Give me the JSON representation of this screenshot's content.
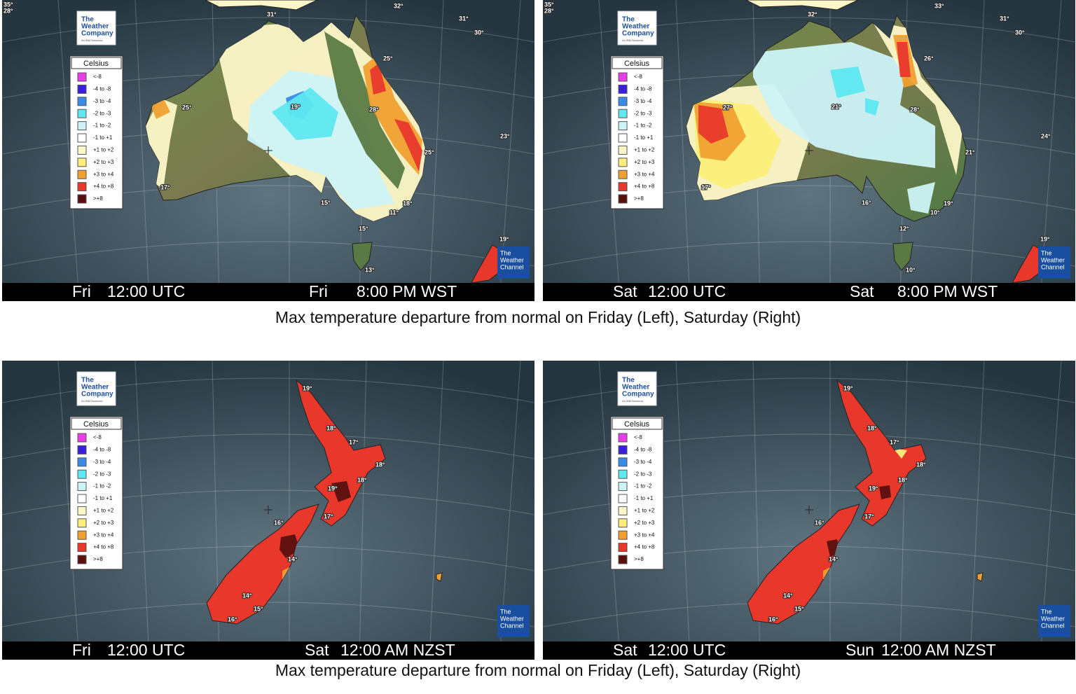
{
  "logo": {
    "line1": "The",
    "line2": "Weather",
    "line3": "Company",
    "sub": "An IBM Business"
  },
  "channel_logo": {
    "line1": "The",
    "line2": "Weather",
    "line3": "Channel"
  },
  "legend": {
    "title": "Celsius",
    "items": [
      {
        "label": "<-8",
        "color": "#e83ee8"
      },
      {
        "label": "-4 to -8",
        "color": "#3a1ee0"
      },
      {
        "label": "-3 to -4",
        "color": "#3a8ae8"
      },
      {
        "label": "-2 to -3",
        "color": "#5ee8f0"
      },
      {
        "label": "-1 to -2",
        "color": "#cdf3f7"
      },
      {
        "label": "-1 to +1",
        "color": "#ffffff"
      },
      {
        "label": "+1 to +2",
        "color": "#fdf7c8"
      },
      {
        "label": "+2 to +3",
        "color": "#fbef7a"
      },
      {
        "label": "+3 to +4",
        "color": "#f0a030"
      },
      {
        "label": "+4 to +8",
        "color": "#e8382c"
      },
      {
        "label": ">+8",
        "color": "#5a0f0f"
      }
    ]
  },
  "panels": [
    {
      "region": "australia",
      "utc_day": "Fri",
      "utc_time": "12:00 UTC",
      "local_day": "Fri",
      "local_time": "8:00 PM WST",
      "temps": [
        "35°",
        "28°",
        "31°",
        "32°",
        "31°",
        "30°",
        "25°",
        "25°",
        "19°",
        "28°",
        "23°",
        "25°",
        "17°",
        "15°",
        "18°",
        "11°",
        "15°",
        "19°",
        "13°"
      ]
    },
    {
      "region": "australia",
      "utc_day": "Sat",
      "utc_time": "12:00 UTC",
      "local_day": "Sat",
      "local_time": "8:00 PM WST",
      "temps": [
        "35°",
        "28°",
        "32°",
        "33°",
        "31°",
        "30°",
        "26°",
        "27°",
        "21°",
        "28°",
        "24°",
        "21°",
        "17°",
        "16°",
        "19°",
        "10°",
        "12°",
        "19°",
        "10°"
      ]
    },
    {
      "region": "nz",
      "utc_day": "Fri",
      "utc_time": "12:00 UTC",
      "local_day": "Sat",
      "local_time": "12:00 AM NZST",
      "temps": [
        "19°",
        "18°",
        "17°",
        "18°",
        "18°",
        "19°",
        "17°",
        "16°",
        "14°",
        "14°",
        "15°",
        "16°"
      ]
    },
    {
      "region": "nz",
      "utc_day": "Sat",
      "utc_time": "12:00 UTC",
      "local_day": "Sun",
      "local_time": "12:00 AM NZST",
      "temps": [
        "19°",
        "18°",
        "17°",
        "18°",
        "18°",
        "19°",
        "17°",
        "16°",
        "14°",
        "14°",
        "15°",
        "16°"
      ]
    }
  ],
  "captions": [
    "Max temperature departure from normal on Friday (Left), Saturday (Right)",
    "Max temperature departure from normal on Friday (Left), Saturday (Right)"
  ]
}
